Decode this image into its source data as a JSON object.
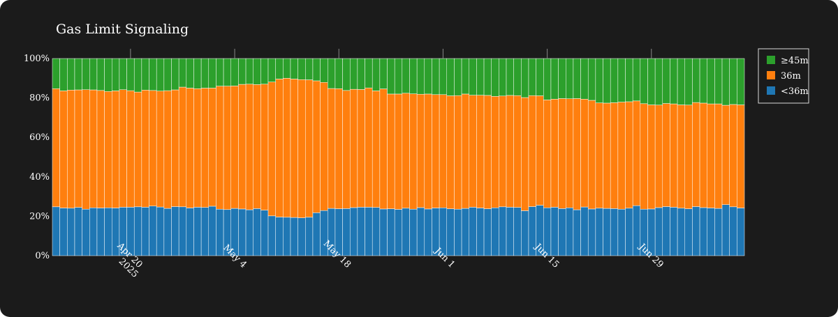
{
  "chart_data": {
    "type": "bar",
    "stacked": true,
    "title": "Gas Limit Signaling",
    "xlabel": "",
    "ylabel": "",
    "ylim": [
      0,
      100
    ],
    "y_tick_format": "percent",
    "y_ticks": [
      0,
      20,
      40,
      60,
      80,
      100
    ],
    "y_tick_labels": [
      "0%",
      "20%",
      "40%",
      "60%",
      "80%",
      "100%"
    ],
    "x_start_date": "2025-04-10",
    "x_end_date": "2025-07-09",
    "x_ticks": [
      "2025-04-20",
      "2025-05-04",
      "2025-05-18",
      "2025-06-01",
      "2025-06-15",
      "2025-06-29"
    ],
    "x_tick_labels": [
      "Apr 20\n2025",
      "May 4",
      "May 18",
      "Jun 1",
      "Jun 15",
      "Jun 29"
    ],
    "legend_position": "top-right",
    "legend_order": [
      "≥45m",
      "36m",
      "<36m"
    ],
    "grid": false,
    "colors": {
      "background": "#1b1b1b",
      "plot_background": "#ffffff",
      "series_lt36": "#1f77b4",
      "series_36": "#ff7f0e",
      "series_ge45": "#2ca02c",
      "bar_edge": "#ffffff"
    },
    "series": [
      {
        "name": "<36m",
        "color": "#1f77b4",
        "values": [
          24.8,
          24.2,
          24.1,
          24.5,
          23.6,
          24.3,
          24.2,
          24.3,
          24.2,
          24.6,
          24.6,
          24.8,
          24.6,
          25.2,
          24.7,
          24.0,
          24.9,
          24.8,
          24.2,
          24.6,
          24.5,
          25.1,
          23.6,
          23.4,
          24.0,
          23.7,
          23.3,
          23.9,
          23.1,
          20.2,
          19.6,
          19.5,
          19.4,
          19.2,
          19.5,
          21.8,
          22.9,
          24.0,
          23.8,
          23.9,
          24.4,
          24.6,
          24.6,
          24.5,
          23.7,
          23.8,
          23.5,
          24.1,
          23.6,
          24.4,
          23.7,
          24.2,
          24.3,
          23.8,
          23.6,
          24.0,
          24.6,
          24.2,
          23.8,
          24.3,
          24.8,
          24.6,
          24.5,
          22.8,
          24.9,
          25.6,
          24.3,
          24.6,
          23.9,
          24.3,
          23.3,
          24.7,
          23.7,
          24.1,
          24.0,
          23.9,
          23.6,
          24.1,
          25.4,
          23.6,
          23.7,
          24.4,
          24.9,
          24.6,
          24.1,
          23.8,
          24.9,
          24.4,
          24.2,
          24.0,
          25.9,
          24.8,
          24.2
        ]
      },
      {
        "name": "36m",
        "color": "#ff7f0e",
        "values": [
          59.9,
          59.4,
          59.9,
          59.6,
          60.6,
          59.8,
          59.6,
          59.0,
          59.4,
          59.6,
          59.1,
          58.2,
          59.4,
          58.6,
          58.8,
          59.7,
          59.2,
          60.7,
          60.8,
          60.1,
          60.5,
          59.9,
          62.4,
          62.6,
          62.1,
          63.2,
          63.7,
          62.9,
          63.9,
          67.9,
          70.0,
          70.5,
          70.2,
          70.1,
          69.7,
          66.9,
          65.0,
          60.8,
          60.9,
          59.9,
          60.0,
          59.7,
          60.5,
          59.1,
          60.9,
          58.2,
          58.5,
          58.3,
          58.5,
          57.5,
          58.3,
          57.5,
          57.4,
          57.3,
          57.6,
          58.0,
          56.8,
          57.2,
          57.5,
          56.5,
          56.2,
          56.7,
          56.7,
          57.4,
          56.3,
          55.5,
          54.7,
          54.8,
          55.8,
          55.3,
          56.4,
          54.7,
          55.1,
          53.4,
          53.4,
          53.7,
          54.3,
          54.0,
          53.1,
          53.5,
          52.8,
          52.0,
          52.3,
          52.4,
          52.4,
          52.6,
          52.8,
          53.0,
          52.8,
          53.0,
          50.4,
          51.9,
          52.3
        ]
      },
      {
        "name": "≥45m",
        "color": "#2ca02c",
        "values": [
          15.3,
          16.4,
          16.0,
          15.9,
          15.8,
          15.9,
          16.2,
          16.7,
          16.4,
          15.8,
          16.3,
          17.0,
          16.0,
          16.2,
          16.5,
          16.3,
          15.9,
          14.5,
          15.0,
          15.3,
          15.0,
          15.0,
          14.0,
          14.0,
          13.9,
          13.1,
          13.0,
          13.2,
          13.0,
          11.9,
          10.4,
          10.0,
          10.4,
          10.7,
          10.8,
          11.3,
          12.1,
          15.2,
          15.3,
          16.2,
          15.6,
          15.7,
          14.9,
          16.4,
          15.4,
          18.0,
          18.0,
          17.6,
          17.9,
          18.1,
          18.0,
          18.3,
          18.3,
          18.9,
          18.8,
          18.0,
          18.6,
          18.6,
          18.7,
          19.2,
          19.0,
          18.7,
          18.8,
          19.8,
          18.8,
          18.9,
          21.0,
          20.6,
          20.3,
          20.4,
          20.3,
          20.6,
          21.2,
          22.5,
          22.6,
          22.4,
          22.1,
          21.9,
          21.5,
          22.9,
          23.5,
          23.6,
          22.8,
          23.0,
          23.5,
          23.6,
          22.3,
          22.6,
          23.0,
          23.0,
          23.7,
          23.3,
          23.5
        ]
      }
    ]
  }
}
